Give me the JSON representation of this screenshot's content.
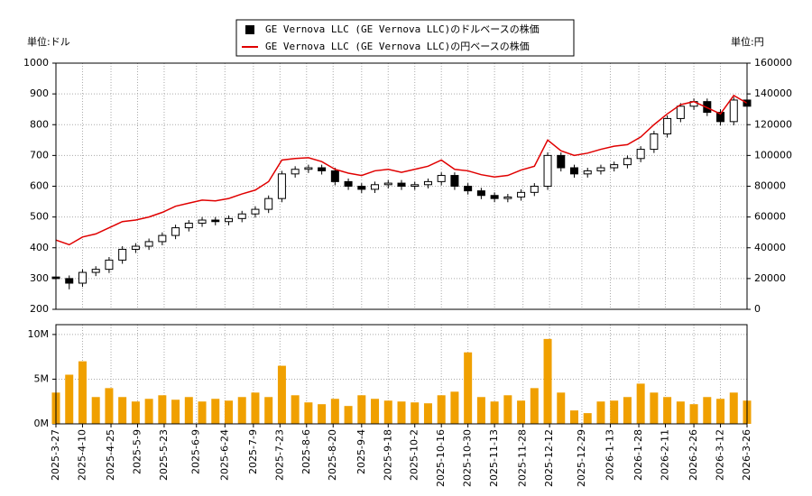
{
  "chart_data": [
    {
      "type": "candlestick",
      "y_label": "単位:ドル",
      "y2_label": "単位:円",
      "x": [
        "2025-03-27",
        "2025-04-03",
        "2025-04-10",
        "2025-04-17",
        "2025-04-24",
        "2025-05-01",
        "2025-05-08",
        "2025-05-15",
        "2025-05-22",
        "2025-05-29",
        "2025-06-05",
        "2025-06-12",
        "2025-06-19",
        "2025-06-26",
        "2025-07-03",
        "2025-07-10",
        "2025-07-17",
        "2025-07-24",
        "2025-07-31",
        "2025-08-07",
        "2025-08-14",
        "2025-08-21",
        "2025-08-28",
        "2025-09-04",
        "2025-09-11",
        "2025-09-18",
        "2025-09-25",
        "2025-10-02",
        "2025-10-09",
        "2025-10-16",
        "2025-10-23",
        "2025-10-30",
        "2025-11-06",
        "2025-11-13",
        "2025-11-20",
        "2025-11-27",
        "2025-12-04",
        "2025-12-11",
        "2025-12-18",
        "2025-12-25",
        "2026-01-01",
        "2026-01-08",
        "2026-01-15",
        "2026-01-22",
        "2026-01-29",
        "2026-02-05",
        "2026-02-12",
        "2026-02-19",
        "2026-02-26",
        "2026-03-05",
        "2026-03-12",
        "2026-03-19",
        "2026-03-26"
      ],
      "xlim": [
        "2025-03-27",
        "2026-03-26"
      ],
      "ylim": [
        200,
        1000
      ],
      "yticks": [
        200,
        300,
        400,
        500,
        600,
        700,
        800,
        900,
        1000
      ],
      "y2lim": [
        0,
        160000
      ],
      "y2ticks": [
        0,
        20000,
        40000,
        60000,
        80000,
        100000,
        120000,
        140000,
        160000
      ],
      "grid": true,
      "series": [
        {
          "name": "GE Vernova LLC (GE Vernova LLC)のドルベースの株価",
          "color": "#000000",
          "open": [
            305,
            300,
            285,
            320,
            330,
            360,
            395,
            405,
            420,
            440,
            465,
            480,
            490,
            485,
            495,
            510,
            525,
            560,
            640,
            655,
            660,
            650,
            615,
            600,
            590,
            605,
            610,
            600,
            605,
            615,
            635,
            600,
            585,
            570,
            560,
            565,
            580,
            600,
            700,
            660,
            640,
            650,
            660,
            670,
            690,
            720,
            770,
            820,
            860,
            875,
            840,
            810,
            880
          ],
          "high": [
            315,
            310,
            330,
            340,
            370,
            405,
            415,
            430,
            450,
            475,
            490,
            500,
            500,
            505,
            520,
            535,
            570,
            650,
            665,
            670,
            670,
            660,
            625,
            610,
            615,
            620,
            620,
            615,
            625,
            645,
            645,
            610,
            595,
            580,
            575,
            590,
            610,
            710,
            710,
            670,
            660,
            670,
            680,
            700,
            730,
            780,
            830,
            870,
            885,
            885,
            850,
            890,
            890
          ],
          "low": [
            288,
            265,
            273,
            308,
            318,
            348,
            383,
            393,
            408,
            428,
            453,
            468,
            473,
            473,
            483,
            498,
            513,
            548,
            628,
            643,
            638,
            603,
            588,
            578,
            578,
            593,
            588,
            588,
            593,
            603,
            588,
            573,
            558,
            548,
            548,
            553,
            568,
            588,
            648,
            628,
            628,
            638,
            648,
            658,
            678,
            708,
            758,
            808,
            848,
            828,
            798,
            798,
            848
          ],
          "close": [
            300,
            285,
            320,
            330,
            360,
            395,
            405,
            420,
            440,
            465,
            480,
            490,
            485,
            495,
            510,
            525,
            560,
            640,
            655,
            660,
            650,
            615,
            600,
            590,
            605,
            610,
            600,
            605,
            615,
            635,
            600,
            585,
            570,
            560,
            565,
            580,
            600,
            700,
            660,
            640,
            650,
            660,
            670,
            690,
            720,
            770,
            820,
            860,
            875,
            840,
            810,
            880,
            860
          ]
        },
        {
          "name": "GE Vernova LLC (GE Vernova LLC)の円ベースの株価",
          "color": "#e00000",
          "axis": "y2",
          "values": [
            45000,
            42000,
            47000,
            49000,
            53000,
            57000,
            58000,
            60000,
            63000,
            67000,
            69000,
            71000,
            70500,
            72000,
            75000,
            77500,
            83000,
            97000,
            98000,
            98500,
            96000,
            91000,
            88500,
            87000,
            90000,
            91000,
            89000,
            91000,
            93000,
            97000,
            91000,
            90000,
            87500,
            86000,
            87000,
            90500,
            93000,
            110000,
            103000,
            100000,
            101500,
            104000,
            106000,
            107000,
            112000,
            120000,
            127000,
            133000,
            135000,
            131000,
            127000,
            139000,
            134000
          ]
        }
      ]
    },
    {
      "type": "bar",
      "color": "#f0a000",
      "values": [
        3500000,
        5500000,
        7000000,
        3000000,
        4000000,
        3000000,
        2500000,
        2800000,
        3200000,
        2700000,
        3000000,
        2500000,
        2800000,
        2600000,
        3000000,
        3500000,
        3000000,
        6500000,
        3200000,
        2400000,
        2200000,
        2800000,
        2000000,
        3200000,
        2800000,
        2600000,
        2500000,
        2400000,
        2300000,
        3200000,
        3600000,
        8000000,
        3000000,
        2500000,
        3200000,
        2600000,
        4000000,
        9500000,
        3500000,
        1500000,
        1200000,
        2500000,
        2600000,
        3000000,
        4500000,
        3500000,
        3000000,
        2500000,
        2200000,
        3000000,
        2800000,
        3500000,
        2600000
      ],
      "ylim": [
        0,
        11100000
      ],
      "yticks": [
        {
          "value": 0,
          "label": "0M"
        },
        {
          "value": 5000000,
          "label": "5M"
        },
        {
          "value": 10000000,
          "label": "10M"
        }
      ],
      "xlim": [
        "2025-03-27",
        "2026-03-26"
      ],
      "xticks": [
        {
          "value": "2025-03-27",
          "label": "2025-3-27"
        },
        {
          "value": "2025-04-10",
          "label": "2025-4-10"
        },
        {
          "value": "2025-04-25",
          "label": "2025-4-25"
        },
        {
          "value": "2025-05-09",
          "label": "2025-5-9"
        },
        {
          "value": "2025-05-23",
          "label": "2025-5-23"
        },
        {
          "value": "2025-06-09",
          "label": "2025-6-9"
        },
        {
          "value": "2025-06-24",
          "label": "2025-6-24"
        },
        {
          "value": "2025-07-09",
          "label": "2025-7-9"
        },
        {
          "value": "2025-07-23",
          "label": "2025-7-23"
        },
        {
          "value": "2025-08-06",
          "label": "2025-8-6"
        },
        {
          "value": "2025-08-20",
          "label": "2025-8-20"
        },
        {
          "value": "2025-09-04",
          "label": "2025-9-4"
        },
        {
          "value": "2025-09-18",
          "label": "2025-9-18"
        },
        {
          "value": "2025-10-02",
          "label": "2025-10-2"
        },
        {
          "value": "2025-10-16",
          "label": "2025-10-16"
        },
        {
          "value": "2025-10-30",
          "label": "2025-10-30"
        },
        {
          "value": "2025-11-13",
          "label": "2025-11-13"
        },
        {
          "value": "2025-11-28",
          "label": "2025-11-28"
        },
        {
          "value": "2025-12-12",
          "label": "2025-12-12"
        },
        {
          "value": "2025-12-29",
          "label": "2025-12-29"
        },
        {
          "value": "2026-01-13",
          "label": "2026-1-13"
        },
        {
          "value": "2026-01-28",
          "label": "2026-1-28"
        },
        {
          "value": "2026-02-11",
          "label": "2026-2-11"
        },
        {
          "value": "2026-02-26",
          "label": "2026-2-26"
        },
        {
          "value": "2026-03-12",
          "label": "2026-3-12"
        },
        {
          "value": "2026-03-26",
          "label": "2026-3-26"
        }
      ]
    }
  ]
}
